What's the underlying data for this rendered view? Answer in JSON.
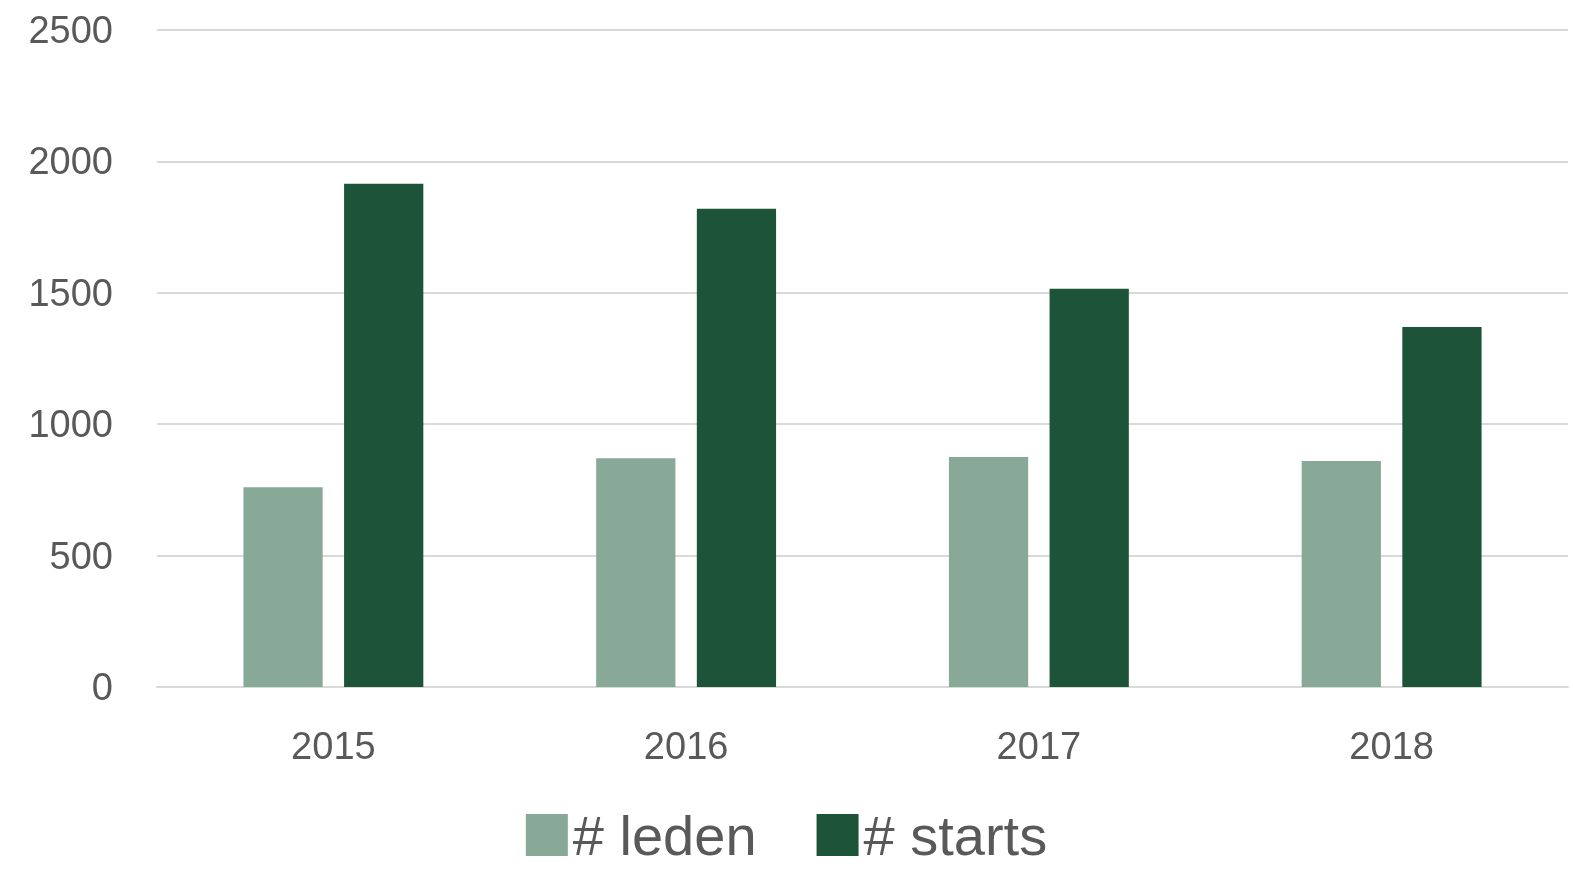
{
  "chart_data": {
    "type": "bar",
    "categories": [
      "2015",
      "2016",
      "2017",
      "2018"
    ],
    "series": [
      {
        "name": "# leden",
        "color": "#88a997",
        "values": [
          760,
          870,
          875,
          860
        ]
      },
      {
        "name": "# starts",
        "color": "#1d5339",
        "values": [
          1915,
          1820,
          1515,
          1370
        ]
      }
    ],
    "ylim": [
      0,
      2500
    ],
    "yticks": [
      0,
      500,
      1000,
      1500,
      2000,
      2500
    ],
    "grid": "y",
    "legend": "bottom"
  }
}
